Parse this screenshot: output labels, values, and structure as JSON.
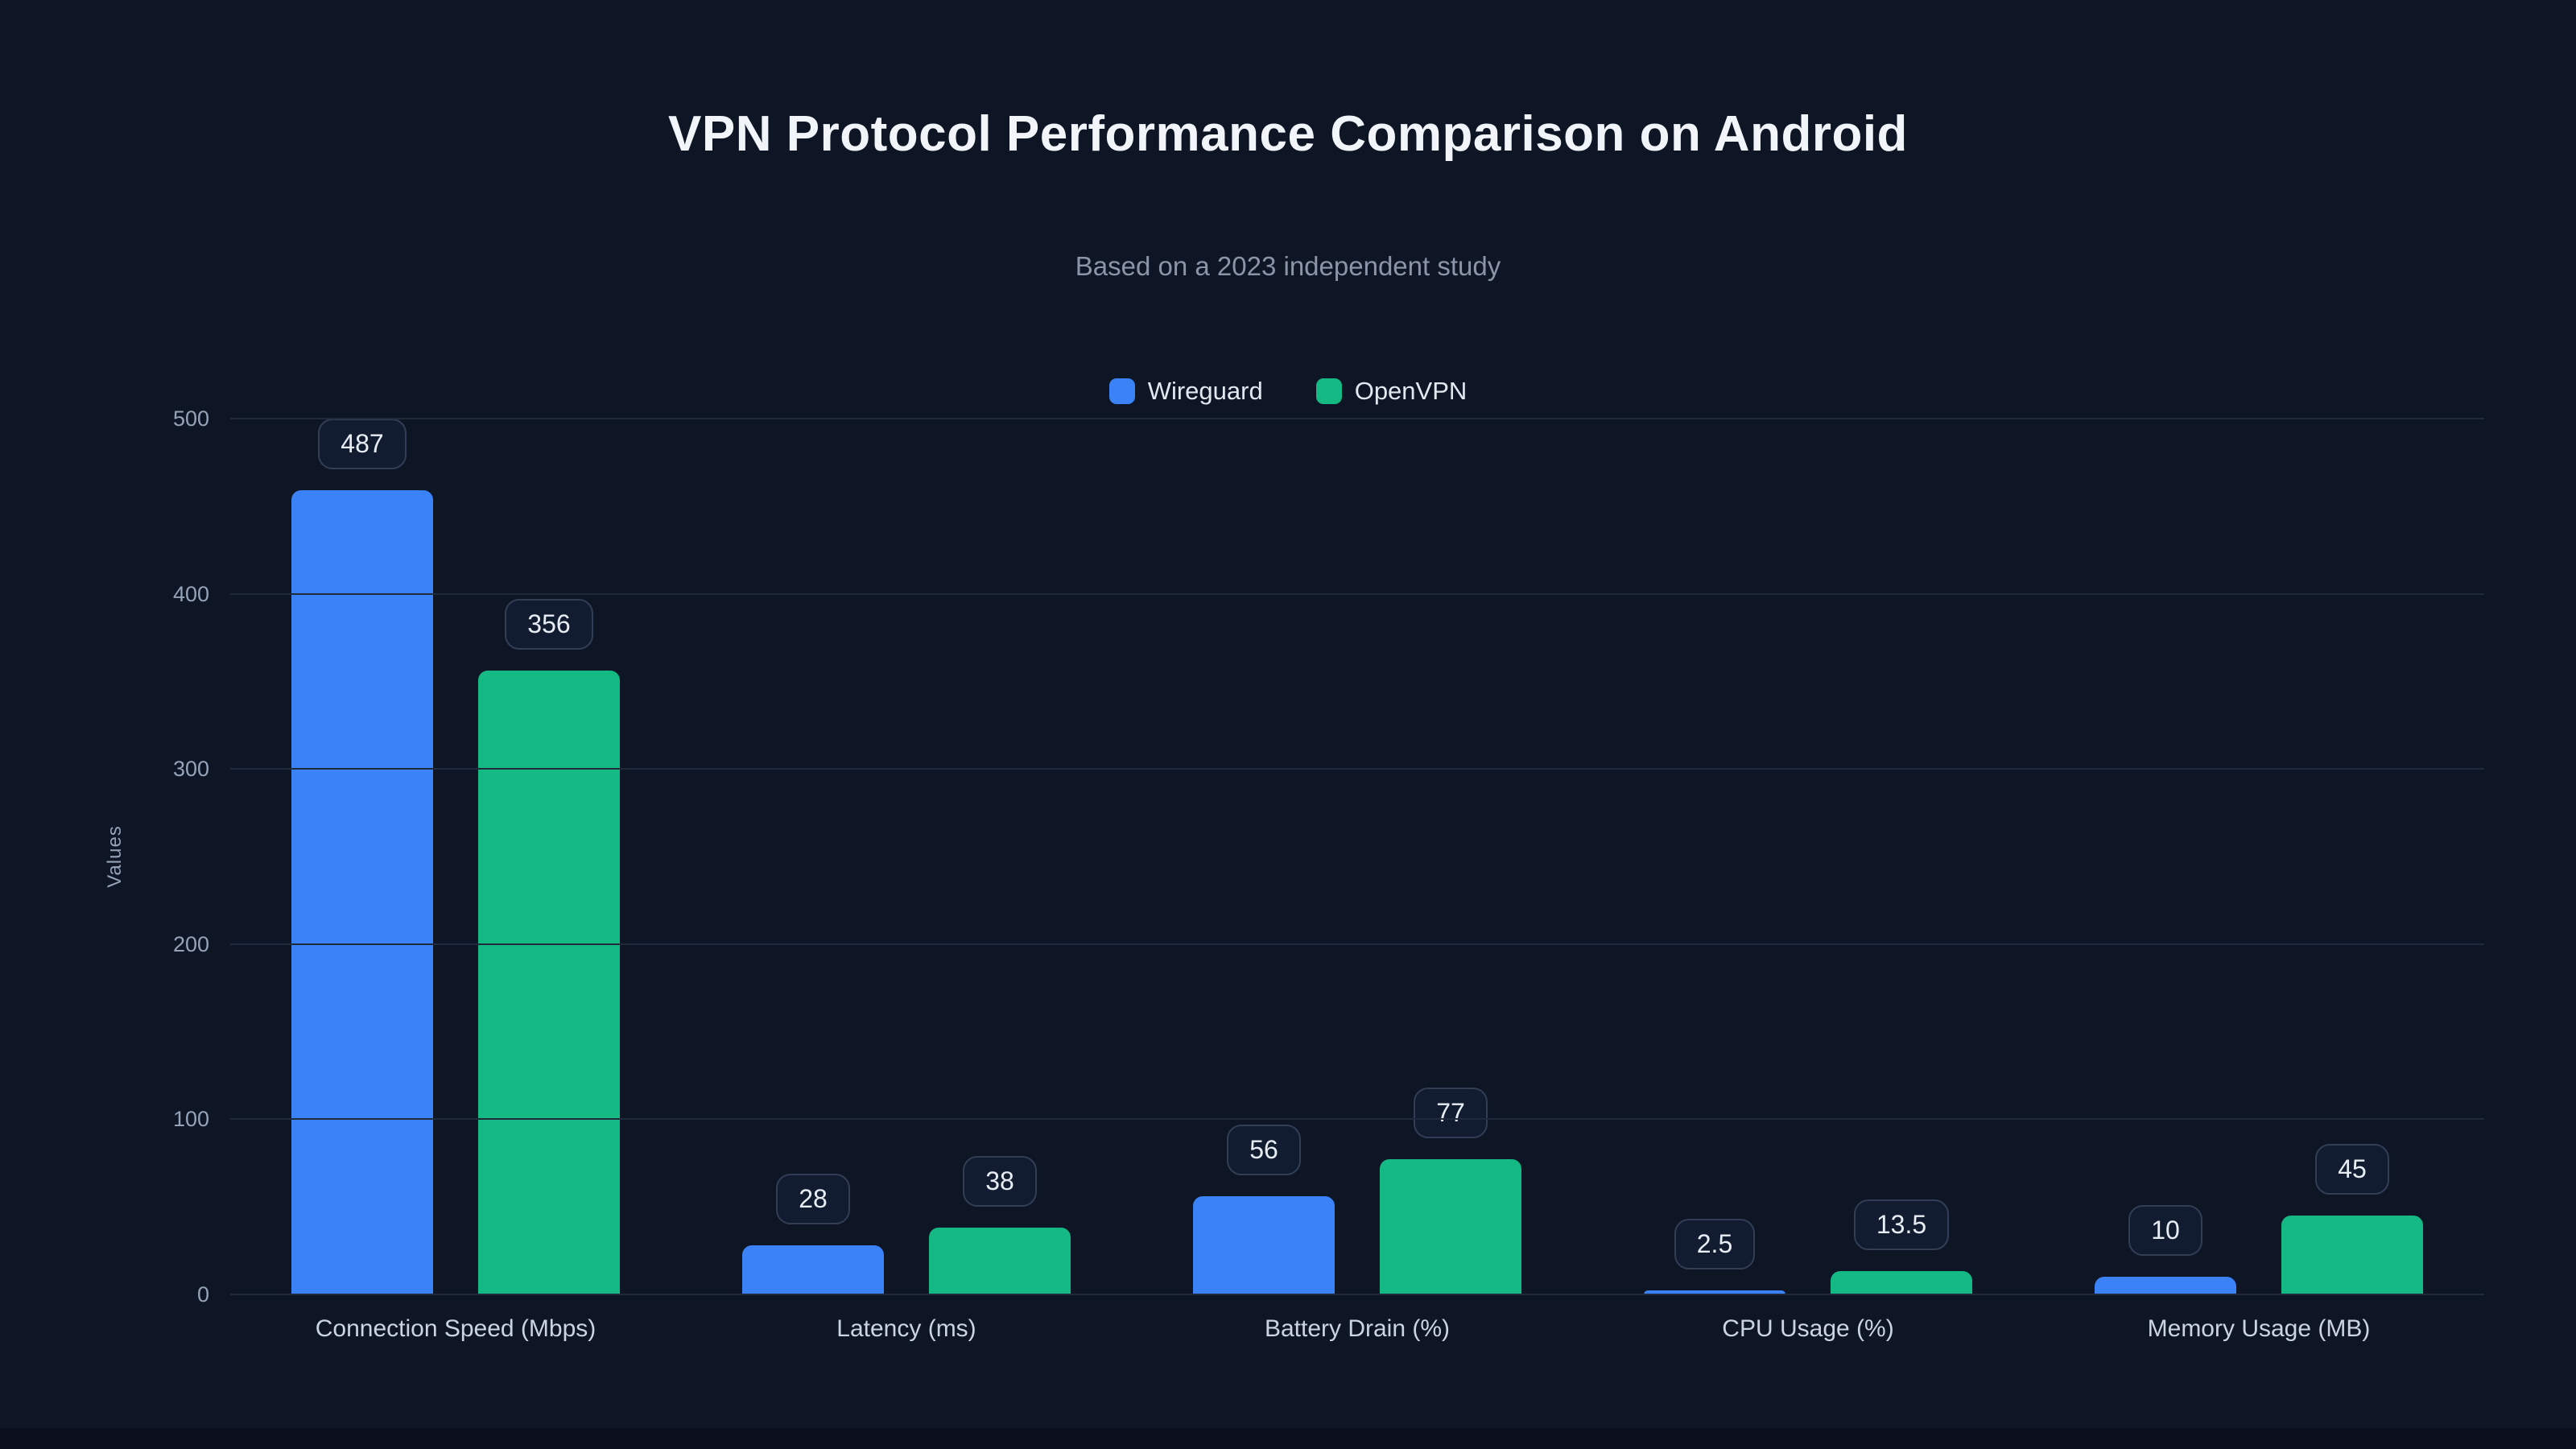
{
  "chart_data": {
    "type": "bar",
    "title": "VPN Protocol Performance Comparison on Android",
    "subtitle": "Based on a 2023 independent study",
    "ylabel": "Values",
    "ylim": [
      0,
      500
    ],
    "yticks": [
      0,
      100,
      200,
      300,
      400,
      500
    ],
    "grid": true,
    "legend_position": "top-center",
    "value_labels": true,
    "categories": [
      "Connection Speed (Mbps)",
      "Latency (ms)",
      "Battery Drain (%)",
      "CPU Usage (%)",
      "Memory Usage (MB)"
    ],
    "series": [
      {
        "name": "Wireguard",
        "color": "#3b82f6",
        "values": [
          487,
          28,
          56,
          2.5,
          10
        ]
      },
      {
        "name": "OpenVPN",
        "color": "#15b984",
        "values": [
          356,
          38,
          77,
          13.5,
          45
        ]
      }
    ]
  },
  "colors": {
    "background": "#0e1626",
    "grid": "#202a3d",
    "tick_text": "#94a3b8",
    "axis_text": "#cbd5e1",
    "title_text": "#f1f5f9",
    "subtitle_text": "#8b95a7",
    "pill_border": "#323e55",
    "pill_bg": "#111c31",
    "pill_text": "#e8edf4"
  }
}
